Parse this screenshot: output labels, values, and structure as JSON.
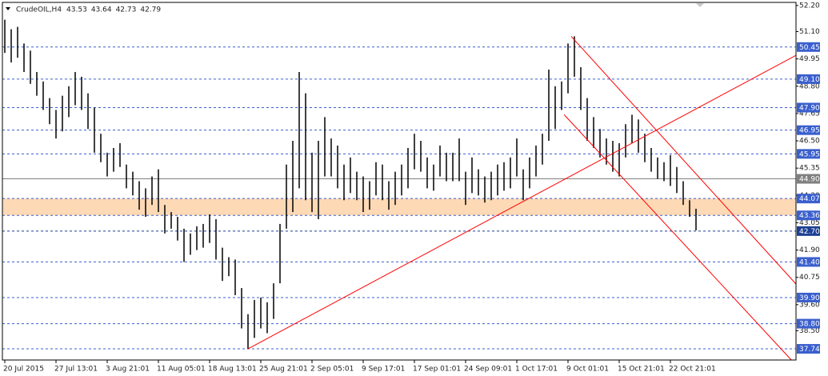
{
  "chart_data": {
    "type": "ohlc",
    "symbol": "CrudeOIL,H4",
    "header_values": [
      43.53,
      43.64,
      42.73,
      42.79
    ],
    "high": [
      51.6,
      51.2,
      51.3,
      50.6,
      50.3,
      49.4,
      49.0,
      48.3,
      47.8,
      48.4,
      48.8,
      49.4,
      49.2,
      48.5,
      47.9,
      46.8,
      46.0,
      46.2,
      46.4,
      45.5,
      45.2,
      44.8,
      44.5,
      45.0,
      45.3,
      43.8,
      43.5,
      43.3,
      42.8,
      42.6,
      42.9,
      43.0,
      43.4,
      43.2,
      42.0,
      41.6,
      41.5,
      40.3,
      39.2,
      39.8,
      39.9,
      39.7,
      40.5,
      43.0,
      45.5,
      46.5,
      49.4,
      48.5,
      46.0,
      46.5,
      47.5,
      46.6,
      46.3,
      45.5,
      45.8,
      45.2,
      45.0,
      44.8,
      45.6,
      45.5,
      44.8,
      45.2,
      45.5,
      46.2,
      46.8,
      46.5,
      45.8,
      45.5,
      46.3,
      46.0,
      46.0,
      46.6,
      45.2,
      45.8,
      45.3,
      45.0,
      45.2,
      45.5,
      45.6,
      45.8,
      46.6,
      45.3,
      45.8,
      46.3,
      46.8,
      49.5,
      48.8,
      49.0,
      50.6,
      50.9,
      49.6,
      48.3,
      47.5,
      47.0,
      46.6,
      46.5,
      46.4,
      47.2,
      47.6,
      47.4,
      46.8,
      46.2,
      45.8,
      45.6,
      45.9,
      45.4,
      44.8,
      44.0,
      43.64
    ],
    "low": [
      50.2,
      49.8,
      50.0,
      49.4,
      48.9,
      48.4,
      47.8,
      47.2,
      46.6,
      46.9,
      47.5,
      48.0,
      47.8,
      47.0,
      46.0,
      45.6,
      45.0,
      45.2,
      45.4,
      44.5,
      44.2,
      43.6,
      43.3,
      43.8,
      43.5,
      42.6,
      42.8,
      42.3,
      41.4,
      41.7,
      41.9,
      42.0,
      42.2,
      41.5,
      40.6,
      40.8,
      40.0,
      38.6,
      37.74,
      38.2,
      38.6,
      38.4,
      39.0,
      40.5,
      42.8,
      43.5,
      44.5,
      44.0,
      43.5,
      43.2,
      45.0,
      45.0,
      44.5,
      44.0,
      44.3,
      44.0,
      43.5,
      43.6,
      44.2,
      44.0,
      43.6,
      43.8,
      44.2,
      44.5,
      45.3,
      45.2,
      44.5,
      44.4,
      45.0,
      44.8,
      44.8,
      44.8,
      43.8,
      44.3,
      44.2,
      43.9,
      44.0,
      44.2,
      44.4,
      44.5,
      45.0,
      44.0,
      44.5,
      45.0,
      45.5,
      46.5,
      47.0,
      47.8,
      48.5,
      49.2,
      47.8,
      46.5,
      46.2,
      45.8,
      45.5,
      45.2,
      45.0,
      45.8,
      46.4,
      46.0,
      45.6,
      45.2,
      44.9,
      44.8,
      44.6,
      44.3,
      43.8,
      43.3,
      42.73
    ],
    "bar_color": "#000000",
    "xlim": [
      -0.375,
      123.625
    ],
    "xticks": [
      {
        "value": 0,
        "label": "20 Jul 2015"
      },
      {
        "value": 8,
        "label": "27 Jul 13:01"
      },
      {
        "value": 16,
        "label": "3 Aug 21:01"
      },
      {
        "value": 24,
        "label": "11 Aug 05:01"
      },
      {
        "value": 32,
        "label": "18 Aug 13:01"
      },
      {
        "value": 40,
        "label": "25 Aug 21:01"
      },
      {
        "value": 48,
        "label": "2 Sep 05:01"
      },
      {
        "value": 56,
        "label": "9 Sep 17:01"
      },
      {
        "value": 64,
        "label": "17 Sep 01:01"
      },
      {
        "value": 72,
        "label": "24 Sep 09:01"
      },
      {
        "value": 80,
        "label": "1 Oct 17:01"
      },
      {
        "value": 88,
        "label": "9 Oct 01:01"
      },
      {
        "value": 96,
        "label": "15 Oct 21:01"
      },
      {
        "value": 104,
        "label": "22 Oct 21:01"
      }
    ],
    "ylim": [
      37.27,
      52.33
    ],
    "yticks": [
      {
        "value": 52.2,
        "label": "52.20"
      },
      {
        "value": 51.1,
        "label": "51.10"
      },
      49.95,
      {
        "value": 48.8,
        "label": "48.80"
      },
      47.65,
      {
        "value": 46.5,
        "label": "46.50"
      },
      45.35,
      {
        "value": 44.2,
        "label": "44.20"
      },
      43.05,
      {
        "value": 41.9,
        "label": "41.90"
      },
      40.75,
      {
        "value": 39.6,
        "label": "39.60"
      },
      {
        "value": 38.5,
        "label": "38.50"
      }
    ],
    "zone": [
      43.36,
      44.07
    ],
    "zone_color": "#fdd9b5",
    "levels": [
      {
        "value": 50.45,
        "color": "#3a5fcd"
      },
      {
        "value": 49.1,
        "label": "49.10",
        "color": "#3a5fcd"
      },
      {
        "value": 47.9,
        "label": "47.90",
        "color": "#3a5fcd"
      },
      {
        "value": 46.95,
        "color": "#3a5fcd"
      },
      {
        "value": 45.95,
        "color": "#3a5fcd"
      },
      {
        "value": 44.9,
        "label": "44.90",
        "color": "#808080"
      },
      {
        "value": 44.07,
        "color": "#3a5fcd"
      },
      {
        "value": 43.36,
        "color": "#3a5fcd"
      },
      {
        "value": 42.7,
        "label": "42.70",
        "color": "#1c3f94"
      },
      {
        "value": 41.4,
        "label": "41.40",
        "color": "#3a5fcd"
      },
      {
        "value": 39.9,
        "label": "39.90",
        "color": "#3a5fcd"
      },
      {
        "value": 38.8,
        "label": "38.80",
        "color": "#3a5fcd"
      },
      {
        "value": 37.74,
        "color": "#3a5fcd"
      }
    ],
    "trend_color": "#ff0000",
    "trend_lines": [
      {
        "x": [
          38,
          123.625
        ],
        "y": [
          37.74,
          50.1
        ]
      },
      {
        "x": [
          88.5,
          123.625
        ],
        "y": [
          50.9,
          40.47
        ]
      },
      {
        "x": [
          87.4,
          122.9
        ],
        "y": [
          47.6,
          37.27
        ]
      }
    ]
  }
}
